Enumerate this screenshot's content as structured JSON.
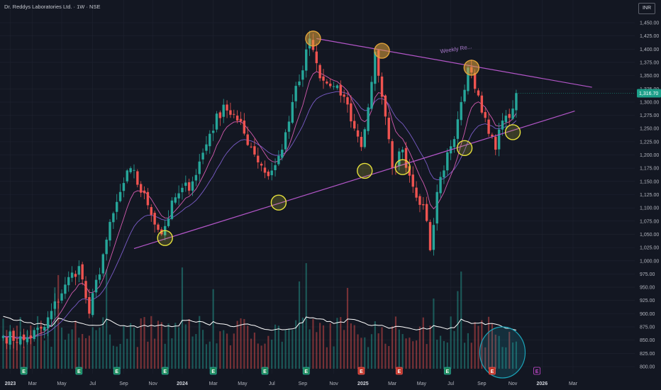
{
  "header": {
    "title": "Dr. Reddys Laboratories Ltd. · 1W · NSE",
    "currency": "INR"
  },
  "colors": {
    "background": "#131722",
    "grid": "#1f2330",
    "up": "#26a69a",
    "down": "#ef5350",
    "trendline": "#b356c8",
    "ma_fast": "#d35bb0",
    "ma_slow": "#7a5cc7",
    "volume_ma": "#ffffff",
    "orange_marker": "#e0a33a",
    "yellow_marker": "#e8e23c",
    "cyan_highlight": "#1aa3b8",
    "last_price_badge": "#1b9e88"
  },
  "chart_data": {
    "type": "candlestick",
    "y_axis": {
      "range": [
        790,
        1470
      ],
      "ticks": [
        "800.00",
        "825.00",
        "850.00",
        "875.00",
        "900.00",
        "925.00",
        "950.00",
        "975.00",
        "1,000.00",
        "1,025.00",
        "1,050.00",
        "1,075.00",
        "1,100.00",
        "1,125.00",
        "1,150.00",
        "1,175.00",
        "1,200.00",
        "1,225.00",
        "1,250.00",
        "1,275.00",
        "1,300.00",
        "1,325.00",
        "1,350.00",
        "1,375.00",
        "1,400.00",
        "1,425.00",
        "1,450.00"
      ],
      "tick_values": [
        800,
        825,
        850,
        875,
        900,
        925,
        950,
        975,
        1000,
        1025,
        1050,
        1075,
        1100,
        1125,
        1150,
        1175,
        1200,
        1225,
        1250,
        1275,
        1300,
        1325,
        1350,
        1375,
        1400,
        1425,
        1450
      ]
    },
    "x_axis": {
      "labels": [
        {
          "text": "2023",
          "bold": true
        },
        {
          "text": "Mar",
          "bold": false
        },
        {
          "text": "May",
          "bold": false
        },
        {
          "text": "Jul",
          "bold": false
        },
        {
          "text": "Sep",
          "bold": false
        },
        {
          "text": "Nov",
          "bold": false
        },
        {
          "text": "2024",
          "bold": true
        },
        {
          "text": "Mar",
          "bold": false
        },
        {
          "text": "May",
          "bold": false
        },
        {
          "text": "Jul",
          "bold": false
        },
        {
          "text": "Sep",
          "bold": false
        },
        {
          "text": "Nov",
          "bold": false
        },
        {
          "text": "2025",
          "bold": true
        },
        {
          "text": "Mar",
          "bold": false
        },
        {
          "text": "May",
          "bold": false
        },
        {
          "text": "Jul",
          "bold": false
        },
        {
          "text": "Sep",
          "bold": false
        },
        {
          "text": "Nov",
          "bold": false
        },
        {
          "text": "2026",
          "bold": true
        },
        {
          "text": "Mar",
          "bold": false
        }
      ]
    },
    "last_price": {
      "value": 1316.7,
      "label": "1,316.70"
    },
    "price_path": [
      {
        "week": 0,
        "close": 858
      },
      {
        "week": 6,
        "close": 850
      },
      {
        "week": 12,
        "close": 875
      },
      {
        "week": 18,
        "close": 955
      },
      {
        "week": 22,
        "close": 990
      },
      {
        "week": 25,
        "close": 900
      },
      {
        "week": 30,
        "close": 1040
      },
      {
        "week": 34,
        "close": 1130
      },
      {
        "week": 37,
        "close": 1175
      },
      {
        "week": 42,
        "close": 1105
      },
      {
        "week": 46,
        "close": 1050
      },
      {
        "week": 50,
        "close": 1120
      },
      {
        "week": 55,
        "close": 1150
      },
      {
        "week": 60,
        "close": 1240
      },
      {
        "week": 64,
        "close": 1295
      },
      {
        "week": 68,
        "close": 1265
      },
      {
        "week": 72,
        "close": 1215
      },
      {
        "week": 75,
        "close": 1180
      },
      {
        "week": 77,
        "close": 1160
      },
      {
        "week": 81,
        "close": 1210
      },
      {
        "week": 84,
        "close": 1300
      },
      {
        "week": 87,
        "close": 1360
      },
      {
        "week": 89,
        "close": 1420
      },
      {
        "week": 92,
        "close": 1345
      },
      {
        "week": 95,
        "close": 1330
      },
      {
        "week": 99,
        "close": 1310
      },
      {
        "week": 102,
        "close": 1250
      },
      {
        "week": 104,
        "close": 1215
      },
      {
        "week": 106,
        "close": 1290
      },
      {
        "week": 108,
        "close": 1395
      },
      {
        "week": 110,
        "close": 1310
      },
      {
        "week": 113,
        "close": 1175
      },
      {
        "week": 116,
        "close": 1210
      },
      {
        "week": 119,
        "close": 1140
      },
      {
        "week": 122,
        "close": 1105
      },
      {
        "week": 124,
        "close": 1020
      },
      {
        "week": 126,
        "close": 1130
      },
      {
        "week": 129,
        "close": 1205
      },
      {
        "week": 131,
        "close": 1230
      },
      {
        "week": 133,
        "close": 1300
      },
      {
        "week": 135,
        "close": 1365
      },
      {
        "week": 137,
        "close": 1325
      },
      {
        "week": 139,
        "close": 1280
      },
      {
        "week": 141,
        "close": 1240
      },
      {
        "week": 143,
        "close": 1210
      },
      {
        "week": 145,
        "close": 1265
      },
      {
        "week": 147,
        "close": 1270
      },
      {
        "week": 149,
        "close": 1317
      }
    ],
    "trendlines": [
      {
        "name": "support",
        "from": {
          "week": 38,
          "value": 1023
        },
        "to": {
          "week": 166,
          "value": 1283
        }
      },
      {
        "name": "resistance",
        "from": {
          "week": 91,
          "value": 1420
        },
        "to": {
          "week": 171,
          "value": 1328
        }
      }
    ],
    "markers": [
      {
        "kind": "top",
        "week": 90,
        "value": 1420
      },
      {
        "kind": "top",
        "week": 110,
        "value": 1397
      },
      {
        "kind": "top",
        "week": 136,
        "value": 1365
      },
      {
        "kind": "bottom",
        "week": 47,
        "value": 1043
      },
      {
        "kind": "bottom",
        "week": 80,
        "value": 1110
      },
      {
        "kind": "bottom",
        "week": 105,
        "value": 1170
      },
      {
        "kind": "bottom",
        "week": 116,
        "value": 1177
      },
      {
        "kind": "bottom",
        "week": 134,
        "value": 1213
      },
      {
        "kind": "bottom",
        "week": 148,
        "value": 1243
      }
    ],
    "volume_highlight": {
      "week": 145
    },
    "event_badges": [
      {
        "week": 6,
        "kind": "earnings-green",
        "label": "E"
      },
      {
        "week": 22,
        "kind": "earnings-green",
        "label": "E"
      },
      {
        "week": 33,
        "kind": "earnings-green",
        "label": "E"
      },
      {
        "week": 47,
        "kind": "earnings-green",
        "label": "E"
      },
      {
        "week": 61,
        "kind": "earnings-green",
        "label": "E"
      },
      {
        "week": 76,
        "kind": "earnings-green",
        "label": "E"
      },
      {
        "week": 88,
        "kind": "earnings-green",
        "label": "E"
      },
      {
        "week": 104,
        "kind": "earnings-red",
        "label": "E"
      },
      {
        "week": 115,
        "kind": "earnings-red",
        "label": "E"
      },
      {
        "week": 129,
        "kind": "earnings-green",
        "label": "E"
      },
      {
        "week": 142,
        "kind": "earnings-red",
        "label": "E"
      },
      {
        "week": 155,
        "kind": "earnings-upcoming",
        "label": "E"
      }
    ],
    "annotations": [
      {
        "text": "Weekly Re...",
        "week": 127,
        "value": 1392
      }
    ]
  }
}
